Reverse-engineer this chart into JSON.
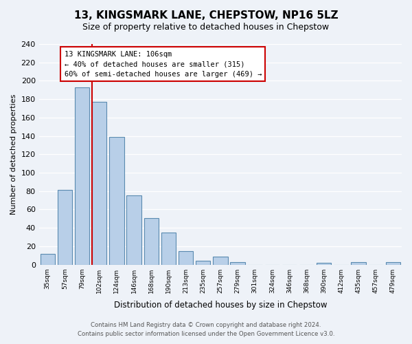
{
  "title": "13, KINGSMARK LANE, CHEPSTOW, NP16 5LZ",
  "subtitle": "Size of property relative to detached houses in Chepstow",
  "xlabel": "Distribution of detached houses by size in Chepstow",
  "ylabel": "Number of detached properties",
  "bar_color": "#b8cfe8",
  "bar_edge_color": "#5a8ab0",
  "bg_color": "#eef2f8",
  "grid_color": "#ffffff",
  "bins": [
    "35sqm",
    "57sqm",
    "79sqm",
    "102sqm",
    "124sqm",
    "146sqm",
    "168sqm",
    "190sqm",
    "213sqm",
    "235sqm",
    "257sqm",
    "279sqm",
    "301sqm",
    "324sqm",
    "346sqm",
    "368sqm",
    "390sqm",
    "412sqm",
    "435sqm",
    "457sqm",
    "479sqm"
  ],
  "values": [
    12,
    81,
    193,
    177,
    139,
    75,
    51,
    35,
    15,
    4,
    9,
    3,
    0,
    0,
    0,
    0,
    2,
    0,
    3,
    0,
    3
  ],
  "ylim": [
    0,
    240
  ],
  "yticks": [
    0,
    20,
    40,
    60,
    80,
    100,
    120,
    140,
    160,
    180,
    200,
    220,
    240
  ],
  "property_label": "13 KINGSMARK LANE: 106sqm",
  "annotation_line1": "← 40% of detached houses are smaller (315)",
  "annotation_line2": "60% of semi-detached houses are larger (469) →",
  "annotation_box_color": "#ffffff",
  "annotation_border_color": "#cc0000",
  "property_line_color": "#cc0000",
  "footer_line1": "Contains HM Land Registry data © Crown copyright and database right 2024.",
  "footer_line2": "Contains public sector information licensed under the Open Government Licence v3.0."
}
